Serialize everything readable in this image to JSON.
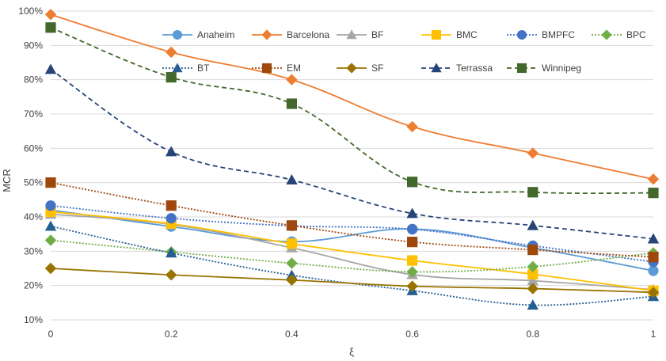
{
  "chart_data": {
    "type": "line",
    "title": "",
    "xlabel": "ξ",
    "ylabel": "MCR",
    "x": [
      0,
      0.2,
      0.4,
      0.6,
      0.8,
      1
    ],
    "x_tick_labels": [
      "0",
      "0.2",
      "0.4",
      "0.6",
      "0.8",
      "1"
    ],
    "ylim": [
      10,
      100
    ],
    "y_tick_labels": [
      "10%",
      "20%",
      "30%",
      "40%",
      "50%",
      "60%",
      "70%",
      "80%",
      "90%",
      "100%"
    ],
    "y_ticks": [
      10,
      20,
      30,
      40,
      50,
      60,
      70,
      80,
      90,
      100
    ],
    "grid": "horizontal",
    "legend_position": "top-right, inside plot",
    "series": [
      {
        "name": "Anaheim",
        "values": [
          42.0,
          37.2,
          32.8,
          36.5,
          31.0,
          24.3
        ],
        "color": "#5b9bd5",
        "dash": "solid",
        "marker": "circle"
      },
      {
        "name": "Barcelona",
        "values": [
          99.0,
          88.0,
          80.0,
          66.3,
          58.6,
          51.0
        ],
        "color": "#ed7d31",
        "dash": "solid",
        "marker": "diamond"
      },
      {
        "name": "BF",
        "values": [
          40.8,
          37.8,
          31.0,
          23.2,
          21.4,
          18.8
        ],
        "color": "#a5a5a5",
        "dash": "solid",
        "marker": "triangle"
      },
      {
        "name": "BMC",
        "values": [
          41.5,
          38.0,
          32.2,
          27.3,
          23.3,
          18.5
        ],
        "color": "#ffc000",
        "dash": "solid",
        "marker": "square"
      },
      {
        "name": "BMPFC",
        "values": [
          43.3,
          39.6,
          37.4,
          36.4,
          31.6,
          26.9
        ],
        "color": "#4472c4",
        "dash": "dotted",
        "marker": "circle"
      },
      {
        "name": "BPC",
        "values": [
          33.2,
          29.8,
          26.5,
          24.0,
          25.5,
          29.5
        ],
        "color": "#70ad47",
        "dash": "dotted",
        "marker": "diamond"
      },
      {
        "name": "BT",
        "values": [
          37.3,
          29.5,
          23.0,
          18.5,
          14.3,
          16.8
        ],
        "color": "#255e91",
        "dash": "dotted",
        "marker": "triangle"
      },
      {
        "name": "EM",
        "values": [
          50.0,
          43.3,
          37.5,
          32.7,
          30.4,
          28.3
        ],
        "color": "#9e480e",
        "dash": "dotted",
        "marker": "square"
      },
      {
        "name": "SF",
        "values": [
          25.0,
          23.1,
          21.6,
          19.8,
          19.1,
          18.0
        ],
        "color": "#997300",
        "dash": "solid",
        "marker": "diamond"
      },
      {
        "name": "Terrassa",
        "values": [
          83.0,
          59.0,
          50.8,
          41.0,
          37.5,
          33.6
        ],
        "color": "#264478",
        "dash": "dashed",
        "marker": "triangle"
      },
      {
        "name": "Winnipeg",
        "values": [
          95.2,
          80.7,
          73.0,
          50.2,
          47.2,
          47.0
        ],
        "color": "#43682b",
        "dash": "dashed",
        "marker": "square"
      }
    ]
  }
}
